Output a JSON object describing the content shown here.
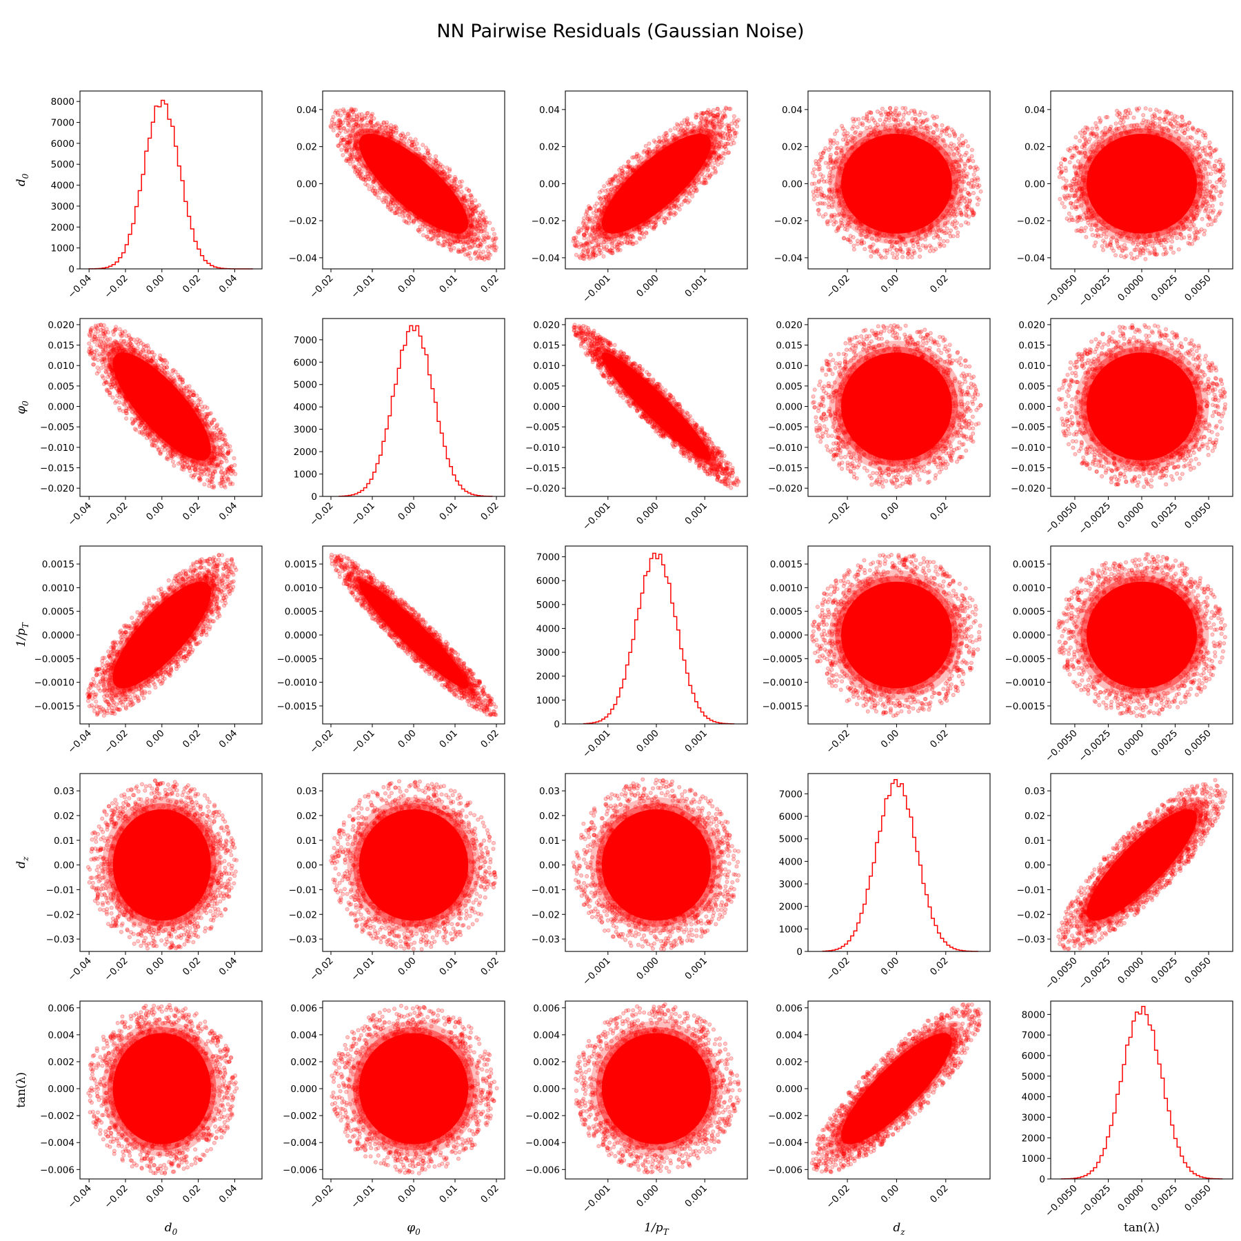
{
  "title": "NN Pairwise Residuals (Gaussian Noise)",
  "chart_data": {
    "type": "pair-grid",
    "title": "NN Pairwise Residuals (Gaussian Noise)",
    "diagonal_type": "histogram (step)",
    "offdiagonal_type": "scatter",
    "color": "#ff0000",
    "grid": false,
    "variables": [
      {
        "id": "d0",
        "label": "d_0",
        "label_text": "d0",
        "sub": "0",
        "xlim": [
          -0.045,
          0.055
        ],
        "xticks": [
          -0.04,
          -0.02,
          0.0,
          0.02,
          0.04
        ],
        "xtick_labels": [
          "−0.04",
          "−0.02",
          "0.00",
          "0.02",
          "0.04"
        ],
        "ylim": [
          -0.046,
          0.05
        ],
        "yticks": [
          -0.04,
          -0.02,
          0.0,
          0.02,
          0.04
        ],
        "ytick_labels": [
          "−0.04",
          "−0.02",
          "0.00",
          "0.02",
          "0.04"
        ],
        "sigma": 0.0098,
        "hist_peak": 8000,
        "hist_ylim": [
          0,
          8500
        ],
        "hist_yticks": [
          0,
          1000,
          2000,
          3000,
          4000,
          5000,
          6000,
          7000,
          8000
        ],
        "hist_ytick_labels": [
          "0",
          "1000",
          "2000",
          "3000",
          "4000",
          "5000",
          "6000",
          "7000",
          "8000"
        ]
      },
      {
        "id": "phi0",
        "label": "φ_0",
        "label_text": "φ0",
        "sub": "0",
        "xlim": [
          -0.022,
          0.022
        ],
        "xticks": [
          -0.02,
          -0.01,
          0.0,
          0.01,
          0.02
        ],
        "xtick_labels": [
          "−0.02",
          "−0.01",
          "0.00",
          "0.01",
          "0.02"
        ],
        "ylim": [
          -0.022,
          0.0215
        ],
        "yticks": [
          -0.02,
          -0.015,
          -0.01,
          -0.005,
          0.0,
          0.005,
          0.01,
          0.015,
          0.02
        ],
        "ytick_labels": [
          "−0.020",
          "−0.015",
          "−0.010",
          "−0.005",
          "0.000",
          "0.005",
          "0.010",
          "0.015",
          "0.020"
        ],
        "sigma": 0.0048,
        "hist_peak": 7600,
        "hist_ylim": [
          0,
          7950
        ],
        "hist_yticks": [
          0,
          1000,
          2000,
          3000,
          4000,
          5000,
          6000,
          7000
        ],
        "hist_ytick_labels": [
          "0",
          "1000",
          "2000",
          "3000",
          "4000",
          "5000",
          "6000",
          "7000"
        ]
      },
      {
        "id": "inv_pt",
        "label": "1/p_T",
        "label_text": "1/pT",
        "sub": "T",
        "xlim": [
          -0.00188,
          0.00188
        ],
        "xticks": [
          -0.001,
          0.0,
          0.001
        ],
        "xtick_labels": [
          "−0.001",
          "0.000",
          "0.001"
        ],
        "ylim": [
          -0.00188,
          0.00188
        ],
        "yticks": [
          -0.0015,
          -0.001,
          -0.0005,
          0.0,
          0.0005,
          0.001,
          0.0015
        ],
        "ytick_labels": [
          "−0.0015",
          "−0.0010",
          "−0.0005",
          "0.0000",
          "0.0005",
          "0.0010",
          "0.0015"
        ],
        "sigma": 0.00041,
        "hist_peak": 7100,
        "hist_ylim": [
          0,
          7450
        ],
        "hist_yticks": [
          0,
          1000,
          2000,
          3000,
          4000,
          5000,
          6000,
          7000
        ],
        "hist_ytick_labels": [
          "0",
          "1000",
          "2000",
          "3000",
          "4000",
          "5000",
          "6000",
          "7000"
        ]
      },
      {
        "id": "dz",
        "label": "d_z",
        "label_text": "dz",
        "sub": "z",
        "xlim": [
          -0.036,
          0.038
        ],
        "xticks": [
          -0.02,
          0.0,
          0.02
        ],
        "xtick_labels": [
          "−0.02",
          "0.00",
          "0.02"
        ],
        "ylim": [
          -0.035,
          0.037
        ],
        "yticks": [
          -0.03,
          -0.02,
          -0.01,
          0.0,
          0.01,
          0.02,
          0.03
        ],
        "ytick_labels": [
          "−0.03",
          "−0.02",
          "−0.01",
          "0.00",
          "0.01",
          "0.02",
          "0.03"
        ],
        "sigma": 0.0082,
        "hist_peak": 7550,
        "hist_ylim": [
          0,
          7900
        ],
        "hist_yticks": [
          0,
          1000,
          2000,
          3000,
          4000,
          5000,
          6000,
          7000
        ],
        "hist_ytick_labels": [
          "0",
          "1000",
          "2000",
          "3000",
          "4000",
          "5000",
          "6000",
          "7000"
        ]
      },
      {
        "id": "tanl",
        "label": "tan(λ)",
        "label_text": "tan(λ)",
        "sub": "",
        "xlim": [
          -0.0068,
          0.0068
        ],
        "xticks": [
          -0.005,
          -0.0025,
          0.0,
          0.0025,
          0.005
        ],
        "xtick_labels": [
          "−0.0050",
          "−0.0025",
          "0.0000",
          "0.0025",
          "0.0050"
        ],
        "ylim": [
          -0.0067,
          0.0065
        ],
        "yticks": [
          -0.006,
          -0.004,
          -0.002,
          0.0,
          0.002,
          0.004,
          0.006
        ],
        "ytick_labels": [
          "−0.006",
          "−0.004",
          "−0.002",
          "0.000",
          "0.002",
          "0.004",
          "0.006"
        ],
        "sigma": 0.0015,
        "hist_peak": 8250,
        "hist_ylim": [
          0,
          8650
        ],
        "hist_yticks": [
          0,
          1000,
          2000,
          3000,
          4000,
          5000,
          6000,
          7000,
          8000
        ],
        "hist_ytick_labels": [
          "0",
          "1000",
          "2000",
          "3000",
          "4000",
          "5000",
          "6000",
          "7000",
          "8000"
        ]
      }
    ],
    "correlations": [
      [
        1.0,
        -0.8,
        0.8,
        0.0,
        0.0
      ],
      [
        -0.8,
        1.0,
        -0.95,
        0.0,
        0.0
      ],
      [
        0.8,
        -0.95,
        1.0,
        0.0,
        0.0
      ],
      [
        0.0,
        0.0,
        0.0,
        1.0,
        0.85
      ],
      [
        0.0,
        0.0,
        0.0,
        0.85,
        1.0
      ]
    ],
    "hist_bins": 50,
    "hist_xranges": [
      [
        -0.04,
        0.05
      ],
      [
        -0.018,
        0.019
      ],
      [
        -0.0015,
        0.0016
      ],
      [
        -0.03,
        0.033
      ],
      [
        -0.006,
        0.006
      ]
    ]
  }
}
